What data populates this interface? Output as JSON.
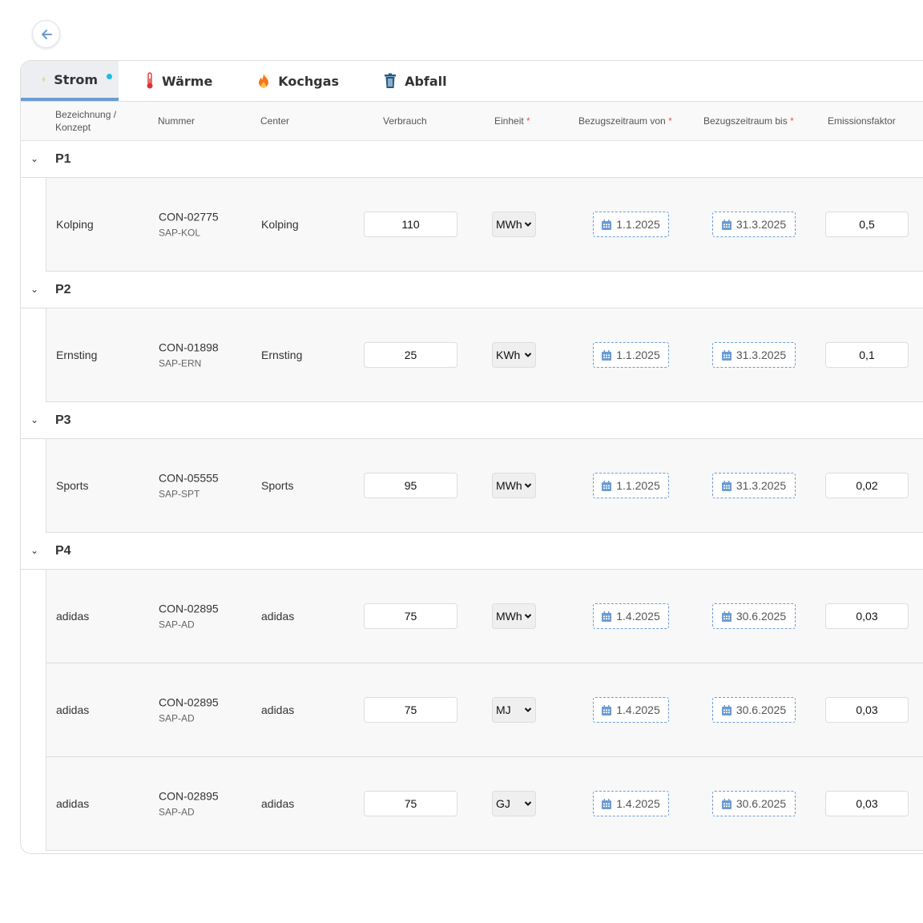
{
  "tabs": [
    {
      "label": "Strom",
      "icon": "lightning-icon",
      "active": true
    },
    {
      "label": "Wärme",
      "icon": "thermometer-icon"
    },
    {
      "label": "Kochgas",
      "icon": "flame-icon"
    },
    {
      "label": "Abfall",
      "icon": "trash-icon"
    }
  ],
  "columns": {
    "bezeichnung": "Bezeichnung /",
    "konzept": "Konzept",
    "nummer": "Nummer",
    "center": "Center",
    "verbrauch": "Verbrauch",
    "einheit": "Einheit",
    "von": "Bezugszeitraum von",
    "bis": "Bezugszeitraum bis",
    "emission": "Emissionsfaktor",
    "required": "*"
  },
  "colors": {
    "accent": "#6b9bd2",
    "dot": "#17bfe8",
    "required": "#e55555"
  },
  "groups": [
    {
      "name": "P1",
      "rows": [
        {
          "name": "Kolping",
          "nummer": "CON-02775",
          "sap": "SAP-KOL",
          "center": "Kolping",
          "verbrauch": "110",
          "einheit": "MWh",
          "von": "1.1.2025",
          "bis": "31.3.2025",
          "emission": "0,5"
        }
      ]
    },
    {
      "name": "P2",
      "rows": [
        {
          "name": "Ernsting",
          "nummer": "CON-01898",
          "sap": "SAP-ERN",
          "center": "Ernsting",
          "verbrauch": "25",
          "einheit": "KWh",
          "von": "1.1.2025",
          "bis": "31.3.2025",
          "emission": "0,1"
        }
      ]
    },
    {
      "name": "P3",
      "rows": [
        {
          "name": "Sports",
          "nummer": "CON-05555",
          "sap": "SAP-SPT",
          "center": "Sports",
          "verbrauch": "95",
          "einheit": "MWh",
          "von": "1.1.2025",
          "bis": "31.3.2025",
          "emission": "0,02"
        }
      ]
    },
    {
      "name": "P4",
      "rows": [
        {
          "name": "adidas",
          "nummer": "CON-02895",
          "sap": "SAP-AD",
          "center": "adidas",
          "verbrauch": "75",
          "einheit": "MWh",
          "von": "1.4.2025",
          "bis": "30.6.2025",
          "emission": "0,03"
        },
        {
          "name": "adidas",
          "nummer": "CON-02895",
          "sap": "SAP-AD",
          "center": "adidas",
          "verbrauch": "75",
          "einheit": "MJ",
          "von": "1.4.2025",
          "bis": "30.6.2025",
          "emission": "0,03"
        },
        {
          "name": "adidas",
          "nummer": "CON-02895",
          "sap": "SAP-AD",
          "center": "adidas",
          "verbrauch": "75",
          "einheit": "GJ",
          "von": "1.4.2025",
          "bis": "30.6.2025",
          "emission": "0,03"
        }
      ]
    }
  ]
}
